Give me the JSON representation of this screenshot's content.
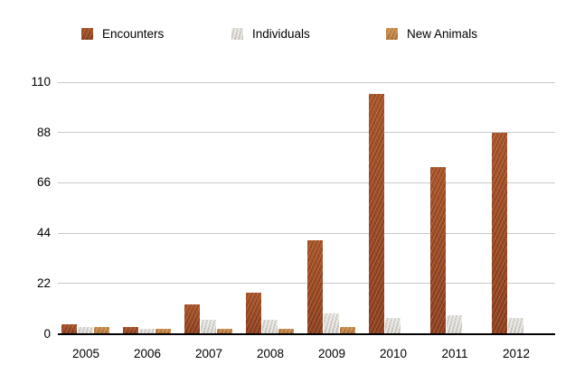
{
  "chart_data": {
    "type": "bar",
    "title": "",
    "xlabel": "",
    "ylabel": "",
    "categories": [
      "2005",
      "2006",
      "2007",
      "2008",
      "2009",
      "2010",
      "2011",
      "2012"
    ],
    "series": [
      {
        "name": "Encounters",
        "color": "#9e4a22",
        "values": [
          4,
          3,
          13,
          18,
          41,
          105,
          73,
          88
        ]
      },
      {
        "name": "Individuals",
        "color": "#d6d4ce",
        "values": [
          3,
          2,
          6,
          6,
          9,
          7,
          8,
          7
        ]
      },
      {
        "name": "New Animals",
        "color": "#c68a47",
        "values": [
          3,
          2,
          2,
          2,
          3,
          0,
          0,
          0
        ]
      }
    ],
    "y_ticks": [
      0,
      22,
      44,
      66,
      88,
      110
    ],
    "ylim": [
      0,
      110
    ],
    "grid": true,
    "legend_position": "top",
    "background_color": "#ffffff",
    "gridline_color": "#c8c8c8",
    "axis_color": "#000000"
  }
}
